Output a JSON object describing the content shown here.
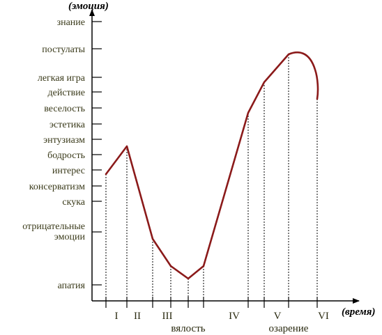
{
  "diagram": {
    "y_axis_label": "(эмоция)",
    "x_axis_label": "(время)",
    "levels": [
      {
        "key": "znanie",
        "label": "знание"
      },
      {
        "key": "postulaty",
        "label": "постулаты"
      },
      {
        "key": "legkaya_igra",
        "label": "легкая игра"
      },
      {
        "key": "deystvie",
        "label": "действие"
      },
      {
        "key": "veselost",
        "label": "веселость"
      },
      {
        "key": "estetika",
        "label": "эстетика"
      },
      {
        "key": "entuziazm",
        "label": "энтузиазм"
      },
      {
        "key": "bodrost",
        "label": "бодрость"
      },
      {
        "key": "interes",
        "label": "интерес"
      },
      {
        "key": "konservatizm",
        "label": "консерватизм"
      },
      {
        "key": "skuka",
        "label": "скука"
      },
      {
        "key": "otritsatelnye",
        "label": "отрицательные",
        "label2": "эмоции"
      },
      {
        "key": "apatiya",
        "label": "апатия"
      }
    ],
    "phases": [
      "I",
      "II",
      "III",
      "IV",
      "V",
      "VI"
    ],
    "phase_notes": [
      {
        "label": "вялость"
      },
      {
        "label": "озарение"
      }
    ],
    "curve_color": "#8b1a1a",
    "text_color": "#3a3a1a"
  }
}
